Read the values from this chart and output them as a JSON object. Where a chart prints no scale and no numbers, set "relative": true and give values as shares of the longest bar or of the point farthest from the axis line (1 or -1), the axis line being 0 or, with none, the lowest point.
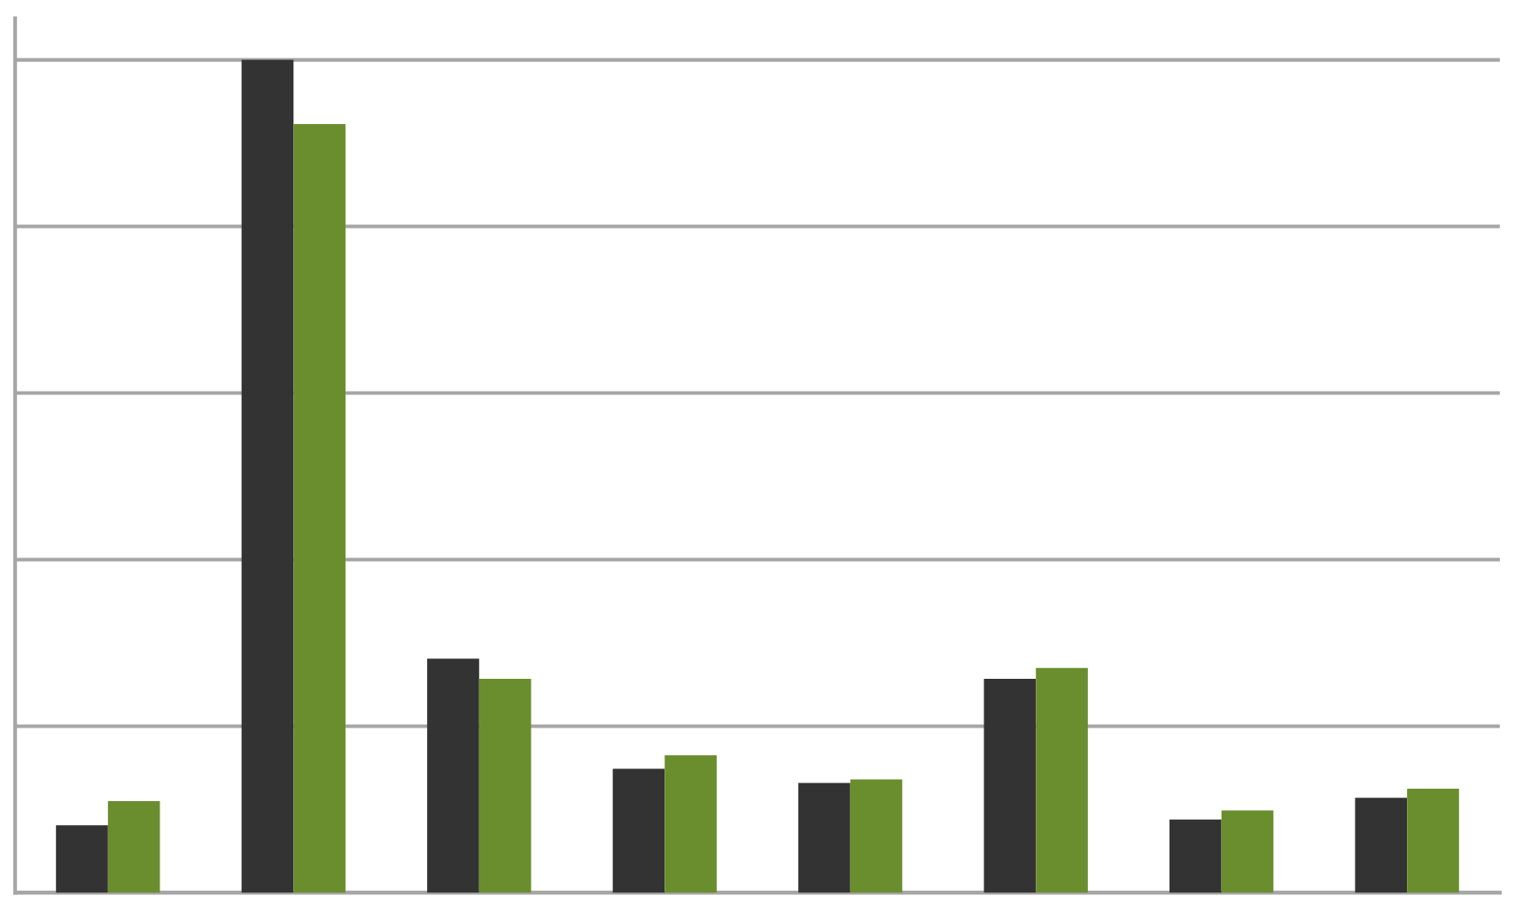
{
  "chart_data": {
    "type": "bar",
    "relative": true,
    "grid": "y",
    "categories": [
      null,
      null,
      null,
      null,
      null,
      null,
      null,
      null
    ],
    "series": [
      {
        "color": "#333333",
        "values": [
          0.081,
          1,
          0.281,
          0.149,
          0.132,
          0.257,
          0.088,
          0.114
        ]
      },
      {
        "color": "#6a8e2e",
        "values": [
          0.11,
          0.923,
          0.257,
          0.165,
          0.136,
          0.27,
          0.099,
          0.125
        ]
      }
    ]
  }
}
